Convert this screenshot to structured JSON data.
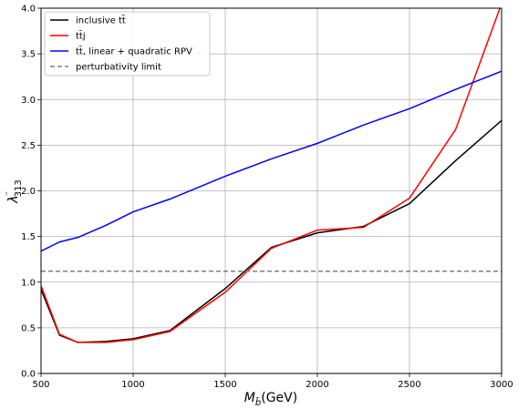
{
  "chart_data": {
    "type": "line",
    "xlabel": "M_b̃(GeV)",
    "ylabel": "λ″313",
    "xlim": [
      500,
      3000
    ],
    "ylim": [
      0.0,
      4.0
    ],
    "x_ticks": [
      "500",
      "1000",
      "1500",
      "2000",
      "2500",
      "3000"
    ],
    "y_ticks": [
      "0.0",
      "0.5",
      "1.0",
      "1.5",
      "2.0",
      "2.5",
      "3.0",
      "3.5",
      "4.0"
    ],
    "grid": true,
    "legend_position": "top-left",
    "series": [
      {
        "name": "inclusive tt̄",
        "color": "#000000",
        "style": "solid",
        "points": [
          [
            500,
            0.92
          ],
          [
            600,
            0.42
          ],
          [
            700,
            0.34
          ],
          [
            850,
            0.35
          ],
          [
            1000,
            0.38
          ],
          [
            1200,
            0.47
          ],
          [
            1500,
            0.93
          ],
          [
            1750,
            1.38
          ],
          [
            2000,
            1.54
          ],
          [
            2250,
            1.61
          ],
          [
            2500,
            1.86
          ],
          [
            2750,
            2.33
          ],
          [
            3000,
            2.77
          ]
        ]
      },
      {
        "name": "tt̄j",
        "color": "#ff0000",
        "style": "solid",
        "points": [
          [
            500,
            0.96
          ],
          [
            600,
            0.43
          ],
          [
            700,
            0.34
          ],
          [
            850,
            0.34
          ],
          [
            1000,
            0.37
          ],
          [
            1200,
            0.46
          ],
          [
            1500,
            0.89
          ],
          [
            1750,
            1.37
          ],
          [
            2000,
            1.57
          ],
          [
            2250,
            1.6
          ],
          [
            2500,
            1.92
          ],
          [
            2750,
            2.67
          ],
          [
            3000,
            4.05
          ]
        ]
      },
      {
        "name": "tt̄, linear + quadratic RPV",
        "color": "#0000ff",
        "style": "solid",
        "points": [
          [
            500,
            1.34
          ],
          [
            600,
            1.44
          ],
          [
            700,
            1.49
          ],
          [
            850,
            1.62
          ],
          [
            1000,
            1.77
          ],
          [
            1200,
            1.91
          ],
          [
            1500,
            2.16
          ],
          [
            1750,
            2.35
          ],
          [
            2000,
            2.52
          ],
          [
            2250,
            2.72
          ],
          [
            2500,
            2.9
          ],
          [
            2750,
            3.11
          ],
          [
            3000,
            3.31
          ]
        ]
      },
      {
        "name": "perturbativity limit",
        "color": "#808080",
        "style": "dashed",
        "points": [
          [
            500,
            1.12
          ],
          [
            3000,
            1.12
          ]
        ]
      }
    ]
  },
  "legend": [
    {
      "label": "inclusive tt̄",
      "color": "#000000",
      "dashed": false
    },
    {
      "label": "tt̄j",
      "color": "#ff0000",
      "dashed": false
    },
    {
      "label": "tt̄, linear + quadratic RPV",
      "color": "#0000ff",
      "dashed": false
    },
    {
      "label": "perturbativity limit",
      "color": "#808080",
      "dashed": true
    }
  ]
}
